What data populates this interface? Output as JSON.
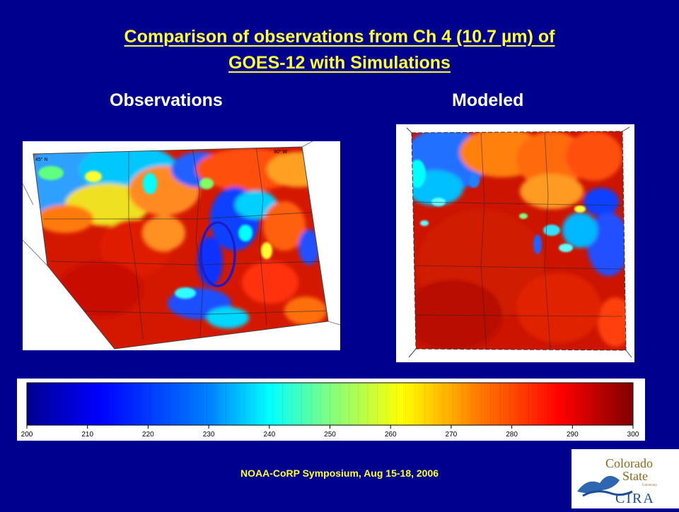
{
  "slide": {
    "title_line1": "Comparison of observations from Ch 4 (10.7 µm) of",
    "title_line2": "GOES-12 with Simulations",
    "observations_label": "Observations",
    "modeled_label": "Modeled",
    "footer": "NOAA-CoRP Symposium, Aug 15-18, 2006"
  },
  "observations_map": {
    "lat_label": "45° N",
    "lon_label": "90° W",
    "highlight_color": "#1c1cc8"
  },
  "colorbar": {
    "ticks": [
      "200",
      "210",
      "220",
      "230",
      "240",
      "250",
      "260",
      "270",
      "280",
      "290",
      "300"
    ],
    "stops": [
      "#00008f",
      "#0000ff",
      "#0080ff",
      "#00ffff",
      "#80ff80",
      "#ffff00",
      "#ff8000",
      "#ff0000",
      "#800000"
    ]
  },
  "logo": {
    "line1": "Colorado",
    "line2": "State",
    "line3": "University",
    "acronym": "CIRA"
  }
}
